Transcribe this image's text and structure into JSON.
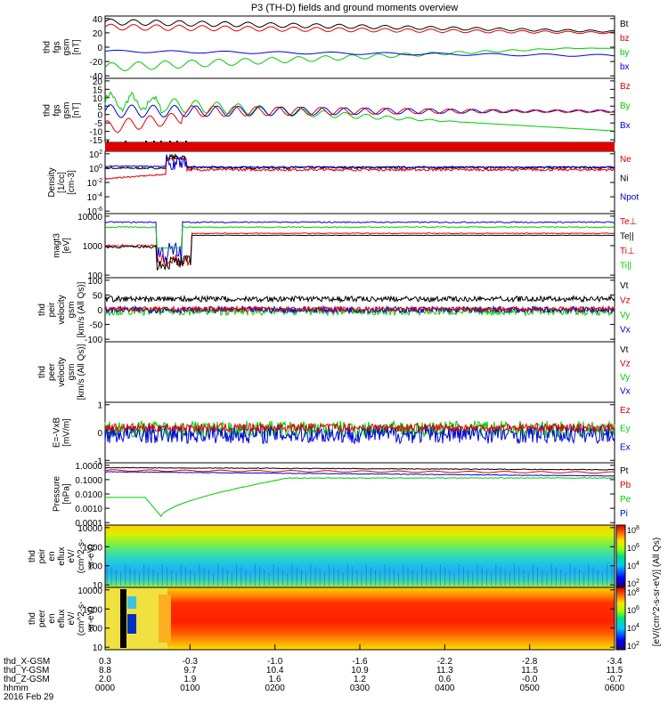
{
  "title": "P3 (TH-D) fields and ground moments overview",
  "panels": [
    {
      "id": "fgs-gsm",
      "ylabel": [
        "thd",
        "fgs",
        "gsm",
        "[nT]"
      ],
      "ticks": [
        "40",
        "20",
        "0",
        "-20",
        "-40"
      ],
      "legend": [
        {
          "label": "Bt",
          "color": "#000000"
        },
        {
          "label": "bz",
          "color": "#d00000"
        },
        {
          "label": "by",
          "color": "#00cc00"
        },
        {
          "label": "bx",
          "color": "#0000cc"
        }
      ]
    },
    {
      "id": "fgs-dsl",
      "ylabel": [
        "thd",
        "fgs",
        "gsm",
        "[nT]"
      ],
      "ticks": [
        "20",
        "15",
        "10",
        "5",
        "0",
        "-5",
        "-10",
        "-15"
      ],
      "legend": [
        {
          "label": "Bz",
          "color": "#d00000"
        },
        {
          "label": "By",
          "color": "#00cc00"
        },
        {
          "label": "Bx",
          "color": "#0000cc"
        }
      ]
    },
    {
      "id": "density",
      "ylabel": [
        "Density",
        "[1/cc]",
        "[cm-3]"
      ],
      "ticks": [
        "10^2",
        "10^0",
        "10^-2",
        "10^-4",
        "10^-6"
      ],
      "legend": [
        {
          "label": "Ne",
          "color": "#d00000"
        },
        {
          "label": "Ni",
          "color": "#000000"
        },
        {
          "label": "Npot",
          "color": "#0000cc"
        }
      ]
    },
    {
      "id": "temperature",
      "ylabel": [
        "magt3",
        "[eV]"
      ],
      "ticks": [
        "10000",
        "1000",
        "100"
      ],
      "legend": [
        {
          "label": "Te⊥",
          "color": "#d00000"
        },
        {
          "label": "Te||",
          "color": "#000000"
        },
        {
          "label": "Ti⊥",
          "color": "#d00000"
        },
        {
          "label": "Ti||",
          "color": "#00cc00"
        }
      ]
    },
    {
      "id": "peir-velocity",
      "ylabel": [
        "thd",
        "peir",
        "velocity",
        "gsm",
        "[km/s (All Qs)]"
      ],
      "ticks": [
        "100",
        "50",
        "0",
        "-50",
        "-100"
      ],
      "legend": [
        {
          "label": "Vt",
          "color": "#000000"
        },
        {
          "label": "Vz",
          "color": "#d00000"
        },
        {
          "label": "Vy",
          "color": "#00cc00"
        },
        {
          "label": "Vx",
          "color": "#0000cc"
        }
      ]
    },
    {
      "id": "peer-velocity",
      "ylabel": [
        "thd",
        "peer",
        "velocity",
        "gsm",
        "[km/s (All Qs)]"
      ],
      "ticks": [],
      "legend": [
        {
          "label": "Vt",
          "color": "#000000"
        },
        {
          "label": "Vz",
          "color": "#d00000"
        },
        {
          "label": "Vy",
          "color": "#00cc00"
        },
        {
          "label": "Vx",
          "color": "#0000cc"
        }
      ]
    },
    {
      "id": "efield",
      "ylabel": [
        "E=-VxB",
        "[mV/m]"
      ],
      "ticks": [
        "1",
        "0",
        "-1"
      ],
      "legend": [
        {
          "label": "Ez",
          "color": "#d00000"
        },
        {
          "label": "Ey",
          "color": "#00cc00"
        },
        {
          "label": "Ex",
          "color": "#0000cc"
        }
      ]
    },
    {
      "id": "pressure",
      "ylabel": [
        "Pressure",
        "[nPa]"
      ],
      "ticks": [
        "1.0000",
        "0.1000",
        "0.0100",
        "0.0010",
        "0.0001"
      ],
      "legend": [
        {
          "label": "Pt",
          "color": "#000000"
        },
        {
          "label": "Pb",
          "color": "#d00000"
        },
        {
          "label": "Pe",
          "color": "#00cc00"
        },
        {
          "label": "Pi",
          "color": "#0000cc"
        }
      ]
    },
    {
      "id": "peir-spectrogram",
      "ylabel": [
        "thd",
        "peir",
        "en",
        "eflux",
        "eV/",
        "(cm^2-s-",
        "sr-eV)"
      ],
      "ticks": [
        "10000",
        "1000",
        "100",
        "10"
      ],
      "legend": []
    },
    {
      "id": "peer-spectrogram",
      "ylabel": [
        "thd",
        "peer",
        "en",
        "eflux",
        "eV/",
        "(cm^2-s-",
        "sr-eV)"
      ],
      "ticks": [
        "10000",
        "1000",
        "100",
        "10"
      ],
      "legend": []
    }
  ],
  "colorbar": {
    "ticks": [
      "10^8",
      "10^6",
      "10^4",
      "10^2"
    ],
    "ticks_lower": [
      "10^8",
      "10^6",
      "10^4",
      "10^2"
    ],
    "label": "[eV/(cm^2-s-sr-eV)] (All Qs)"
  },
  "xaxis": {
    "rows": [
      {
        "label": "thd_X-GSM",
        "values": [
          "0.3",
          "-0.3",
          "-1.0",
          "-1.6",
          "-2.2",
          "-2.8",
          "-3.4"
        ]
      },
      {
        "label": "thd_Y-GSM",
        "values": [
          "8.8",
          "9.7",
          "10.4",
          "10.9",
          "11.3",
          "11.5",
          "11.5"
        ]
      },
      {
        "label": "thd_Z-GSM",
        "values": [
          "2.0",
          "1.9",
          "1.6",
          "1.2",
          "0.6",
          "-0.0",
          "-0.7"
        ]
      },
      {
        "label": "hhmm",
        "values": [
          "0000",
          "0100",
          "0200",
          "0300",
          "0400",
          "0500",
          "0600"
        ]
      }
    ],
    "date": "2016 Feb 29"
  },
  "chart_data": {
    "type": "line",
    "title": "P3 (TH-D) fields and ground moments overview",
    "x_time": [
      "0000",
      "0100",
      "0200",
      "0300",
      "0400",
      "0500",
      "0600"
    ],
    "series": [
      {
        "name": "Bt",
        "values": [
          35,
          33,
          30,
          28,
          26,
          25,
          24
        ]
      },
      {
        "name": "bz",
        "values": [
          30,
          28,
          27,
          25,
          24,
          23,
          22
        ]
      },
      {
        "name": "by",
        "values": [
          -25,
          -15,
          -8,
          -4,
          -2,
          0,
          1
        ]
      },
      {
        "name": "bx",
        "values": [
          -3,
          -4,
          -5,
          -6,
          -7,
          -8,
          -8
        ]
      }
    ],
    "ylim": [
      -40,
      45
    ]
  }
}
